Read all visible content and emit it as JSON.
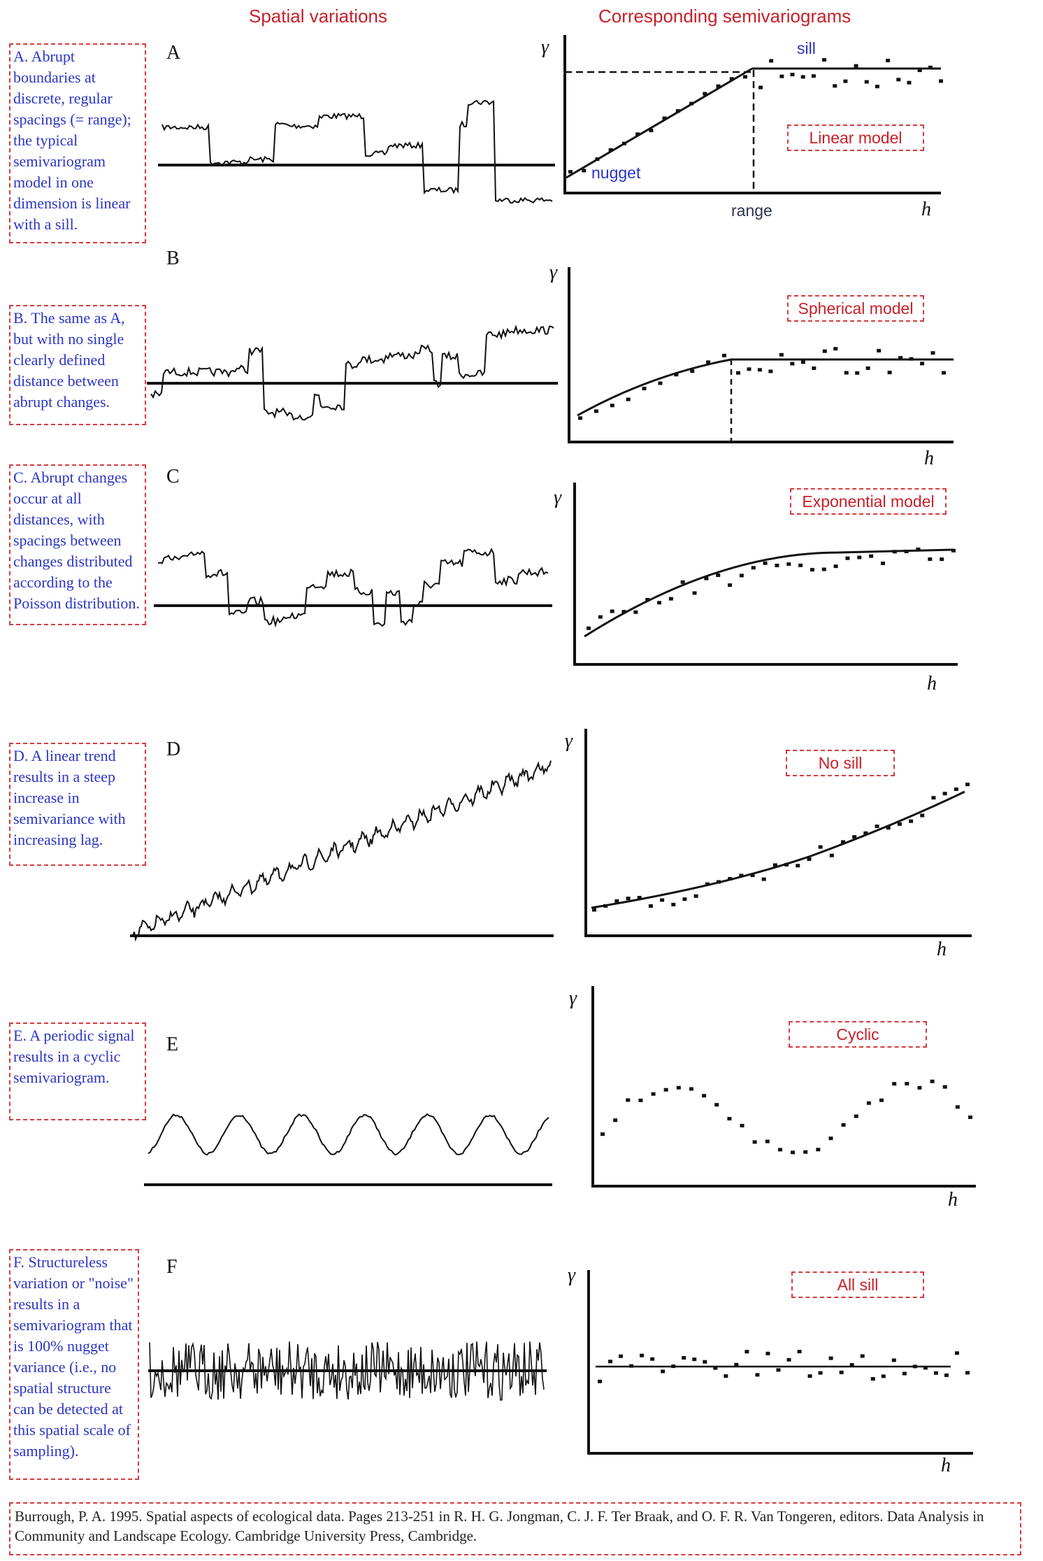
{
  "headers": {
    "left": "Spatial variations",
    "right": "Corresponding semivariograms"
  },
  "gamma_symbol": "γ",
  "h_symbol": "h",
  "panels": [
    {
      "label": "A",
      "description": "A. Abrupt boundaries at discrete, regular spacings (= range); the typical semivariogram model in one dimension is linear with a sill.",
      "model": "Linear model",
      "sill_label": "sill",
      "nugget_label": "nugget",
      "range_label": "range"
    },
    {
      "label": "B",
      "description": "B. The same as A, but with no single clearly defined distance between abrupt changes.",
      "model": "Spherical model"
    },
    {
      "label": "C",
      "description": "C. Abrupt changes occur at all distances, with spacings between changes distributed according to the Poisson distribution.",
      "model": "Exponential model"
    },
    {
      "label": "D",
      "description": "D. A linear trend results in a steep increase in semivariance with increasing lag.",
      "model": "No sill"
    },
    {
      "label": "E",
      "description": "E. A periodic signal results in a cyclic semivariogram.",
      "model": "Cyclic"
    },
    {
      "label": "F",
      "description": "F. Structureless variation or \"noise\" results in a semivariogram that is 100% nugget variance (i.e., no spatial structure can be detected at this spatial scale of sampling).",
      "model": "All sill"
    }
  ],
  "citation": "Burrough, P. A. 1995. Spatial aspects of ecological data. Pages 213-251 in R. H. G. Jongman, C. J. F. Ter Braak, and O. F. R. Van Tongeren, editors. Data Analysis in Community and Landscape Ecology. Cambridge University Press, Cambridge."
}
